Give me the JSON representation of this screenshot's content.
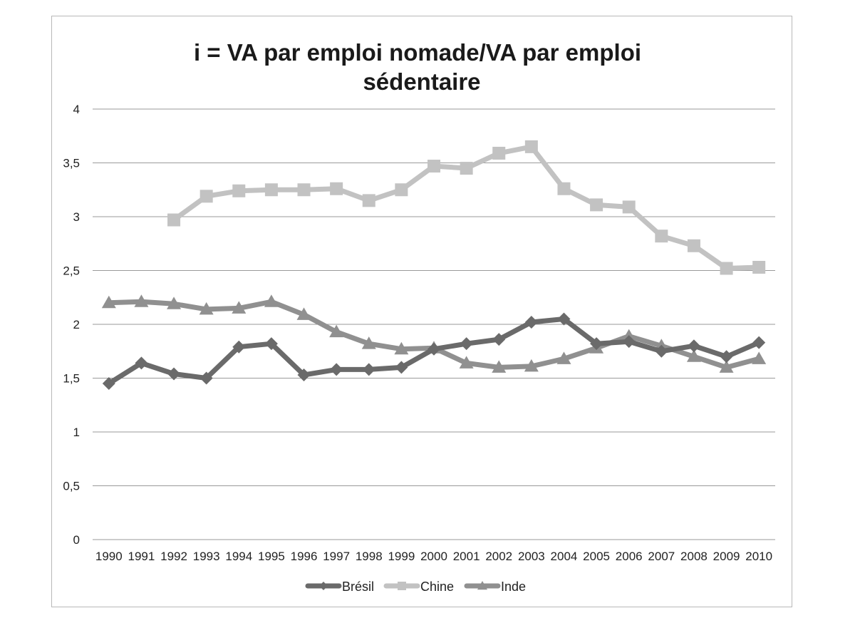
{
  "chart_data": {
    "type": "line",
    "title_lines": [
      "i = VA par emploi nomade/VA par emploi",
      "sédentaire"
    ],
    "xlabel": "",
    "ylabel": "",
    "ylim": [
      0,
      4
    ],
    "y_ticks": [
      0,
      0.5,
      1,
      1.5,
      2,
      2.5,
      3,
      3.5,
      4
    ],
    "y_tick_labels": [
      "0",
      "0,5",
      "1",
      "1,5",
      "2",
      "2,5",
      "3",
      "3,5",
      "4"
    ],
    "grid": true,
    "legend_position": "bottom",
    "categories": [
      "1990",
      "1991",
      "1992",
      "1993",
      "1994",
      "1995",
      "1996",
      "1997",
      "1998",
      "1999",
      "2000",
      "2001",
      "2002",
      "2003",
      "2004",
      "2005",
      "2006",
      "2007",
      "2008",
      "2009",
      "2010"
    ],
    "series": [
      {
        "name": "Brésil",
        "marker": "diamond",
        "color": "#6a6a6a",
        "values": [
          1.45,
          1.64,
          1.54,
          1.5,
          1.79,
          1.82,
          1.53,
          1.58,
          1.58,
          1.6,
          1.77,
          1.82,
          1.86,
          2.02,
          2.05,
          1.82,
          1.84,
          1.75,
          1.8,
          1.7,
          1.83
        ]
      },
      {
        "name": "Chine",
        "marker": "square",
        "color": "#c2c2c2",
        "values": [
          null,
          null,
          2.97,
          3.19,
          3.24,
          3.25,
          3.25,
          3.26,
          3.15,
          3.25,
          3.47,
          3.45,
          3.59,
          3.65,
          3.26,
          3.11,
          3.09,
          2.82,
          2.73,
          2.52,
          2.53
        ]
      },
      {
        "name": "Inde",
        "marker": "triangle",
        "color": "#909090",
        "values": [
          2.2,
          2.21,
          2.19,
          2.14,
          2.15,
          2.21,
          2.09,
          1.93,
          1.82,
          1.77,
          1.78,
          1.64,
          1.6,
          1.61,
          1.68,
          1.78,
          1.89,
          1.8,
          1.7,
          1.6,
          1.68
        ]
      }
    ]
  }
}
